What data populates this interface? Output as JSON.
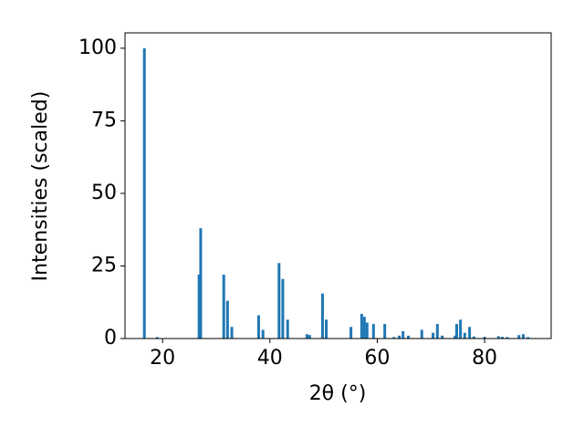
{
  "chart_data": {
    "type": "bar",
    "x_label": "2θ (°)",
    "y_label": "Intensities (scaled)",
    "x": [
      16.6,
      19.0,
      26.8,
      27.1,
      31.4,
      32.1,
      32.9,
      37.9,
      38.7,
      41.7,
      42.4,
      43.3,
      46.9,
      47.4,
      49.8,
      50.5,
      55.1,
      57.1,
      57.6,
      58.1,
      59.3,
      61.4,
      63.1,
      64.1,
      64.8,
      65.8,
      68.3,
      70.4,
      71.2,
      72.1,
      74.5,
      74.8,
      75.5,
      76.3,
      77.2,
      78.0,
      80.0,
      82.6,
      83.3,
      84.2,
      86.4,
      87.2,
      88.1
    ],
    "values": [
      100,
      0.5,
      22,
      38,
      22,
      13,
      4,
      8,
      3,
      26,
      20.5,
      6.5,
      1.5,
      1.2,
      15.5,
      6.5,
      4,
      8.5,
      7.5,
      5.5,
      5,
      5,
      0.5,
      1,
      2.5,
      1,
      3,
      2,
      5,
      1,
      1,
      5,
      6.5,
      2,
      4,
      0.7,
      0.6,
      0.8,
      0.6,
      0.5,
      1.2,
      1.5,
      0.5
    ],
    "color": "#1f77b4",
    "xlim": [
      13,
      92.4
    ],
    "xticks": [
      20,
      40,
      60,
      80
    ],
    "ylim": [
      0,
      105.3
    ],
    "yticks": [
      0,
      25,
      50,
      75,
      100
    ]
  }
}
